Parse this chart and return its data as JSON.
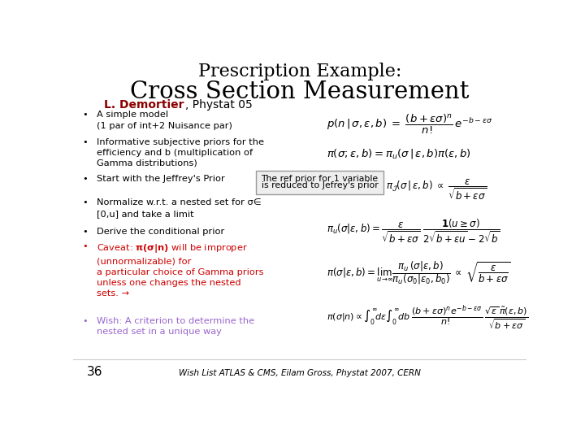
{
  "title_line1": "Prescription Example:",
  "title_line2": "Cross Section Measurement",
  "subtitle_colored": "L. Demortier",
  "subtitle_rest": ", Phystat 05",
  "bg_color": "#ffffff",
  "title_color": "#000000",
  "subtitle_bold_color": "#8B0000",
  "footer_text": "Wish List ATLAS & CMS, Eilam Gross, Phystat 2007, CERN",
  "page_number": "36",
  "callout_text1": "The ref prior for 1 variable",
  "callout_text2": "is reduced to Jefrey's prior"
}
